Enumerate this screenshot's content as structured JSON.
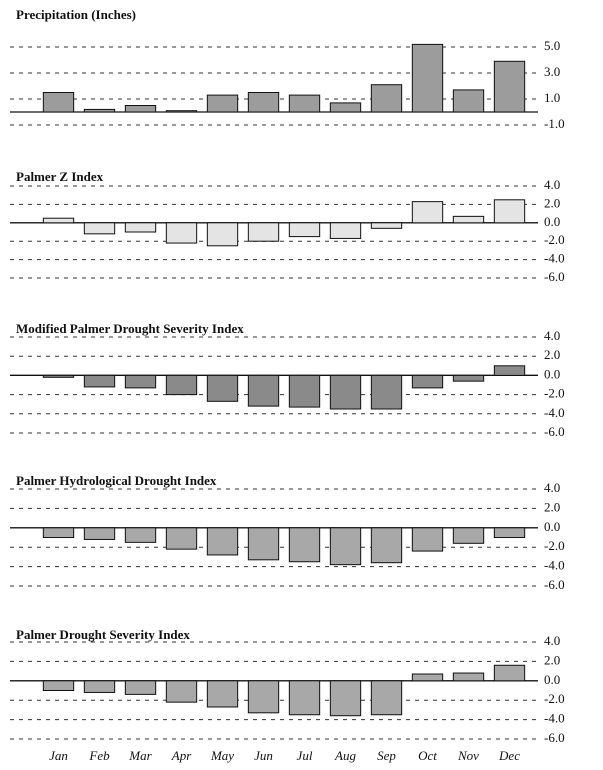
{
  "chart_data": [
    {
      "type": "bar",
      "title": "Precipitation (Inches)",
      "color": "#9c9c9c",
      "values": [
        1.5,
        0.2,
        0.5,
        0.1,
        1.3,
        1.5,
        1.3,
        0.7,
        2.1,
        5.2,
        1.7,
        3.9
      ],
      "ylim": [
        -1,
        5
      ],
      "yticks": [
        {
          "value": 5,
          "label": "5.0"
        },
        {
          "value": 3,
          "label": "3.0"
        },
        {
          "value": 1,
          "label": "1.0"
        },
        {
          "value": -1,
          "label": "-1.0"
        }
      ],
      "grid": true
    },
    {
      "type": "bar",
      "title": "Palmer Z Index",
      "color": "#e4e4e4",
      "values": [
        0.5,
        -1.2,
        -1.0,
        -2.2,
        -2.5,
        -2.0,
        -1.5,
        -1.7,
        -0.6,
        2.3,
        0.7,
        2.5
      ],
      "ylim": [
        -6,
        4
      ],
      "yticks": [
        {
          "value": 4,
          "label": "4.0"
        },
        {
          "value": 2,
          "label": "2.0"
        },
        {
          "value": 0,
          "label": "0.0"
        },
        {
          "value": -2,
          "label": "-2.0"
        },
        {
          "value": -4,
          "label": "-4.0"
        },
        {
          "value": -6,
          "label": "-6.0"
        }
      ],
      "grid": true
    },
    {
      "type": "bar",
      "title": "Modified Palmer Drought Severity Index",
      "color": "#8a8a8a",
      "values": [
        -0.2,
        -1.2,
        -1.3,
        -2.0,
        -2.7,
        -3.2,
        -3.3,
        -3.5,
        -3.5,
        -1.3,
        -0.6,
        1.0
      ],
      "ylim": [
        -6,
        4
      ],
      "yticks": [
        {
          "value": 4,
          "label": "4.0"
        },
        {
          "value": 2,
          "label": "2.0"
        },
        {
          "value": 0,
          "label": "0.0"
        },
        {
          "value": -2,
          "label": "-2.0"
        },
        {
          "value": -4,
          "label": "-4.0"
        },
        {
          "value": -6,
          "label": "-6.0"
        }
      ],
      "grid": true
    },
    {
      "type": "bar",
      "title": "Palmer Hydrological Drought Index",
      "color": "#a8a8a8",
      "values": [
        -1.0,
        -1.2,
        -1.5,
        -2.2,
        -2.8,
        -3.3,
        -3.5,
        -3.8,
        -3.6,
        -2.4,
        -1.6,
        -1.0
      ],
      "ylim": [
        -6,
        4
      ],
      "yticks": [
        {
          "value": 4,
          "label": "4.0"
        },
        {
          "value": 2,
          "label": "2.0"
        },
        {
          "value": 0,
          "label": "0.0"
        },
        {
          "value": -2,
          "label": "-2.0"
        },
        {
          "value": -4,
          "label": "-4.0"
        },
        {
          "value": -6,
          "label": "-6.0"
        }
      ],
      "grid": true
    },
    {
      "type": "bar",
      "title": "Palmer Drought Severity Index",
      "color": "#a8a8a8",
      "categories": [
        "Jan",
        "Feb",
        "Mar",
        "Apr",
        "May",
        "Jun",
        "Jul",
        "Aug",
        "Sep",
        "Oct",
        "Nov",
        "Dec"
      ],
      "values": [
        -1.0,
        -1.2,
        -1.4,
        -2.2,
        -2.7,
        -3.3,
        -3.5,
        -3.6,
        -3.5,
        0.7,
        0.8,
        1.6
      ],
      "ylim": [
        -6,
        4
      ],
      "yticks": [
        {
          "value": 4,
          "label": "4.0"
        },
        {
          "value": 2,
          "label": "2.0"
        },
        {
          "value": 0,
          "label": "0.0"
        },
        {
          "value": -2,
          "label": "-2.0"
        },
        {
          "value": -4,
          "label": "-4.0"
        },
        {
          "value": -6,
          "label": "-6.0"
        }
      ],
      "grid": true
    }
  ]
}
